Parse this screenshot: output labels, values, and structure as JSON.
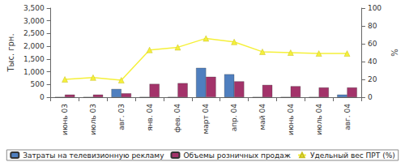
{
  "chart_data": {
    "type": "bar",
    "categories": [
      "июнь 03",
      "июль 03",
      "авг. 03",
      "янв. 04",
      "фев. 04",
      "март 04",
      "апр. 04",
      "май 04",
      "июнь 04",
      "июль 04",
      "авг. 04"
    ],
    "ylabel": "Тыс. грн.",
    "y2label": "%",
    "ylim": [
      0,
      3500
    ],
    "yticks": [
      0,
      500,
      1000,
      1500,
      2000,
      2500,
      3000,
      3500
    ],
    "y2lim": [
      0,
      100
    ],
    "y2ticks": [
      0,
      20,
      40,
      60,
      80,
      100
    ],
    "grid": false,
    "legend": "bottom",
    "series": [
      {
        "name": "Затраты на телевизионную рекламу",
        "type": "bar",
        "color": "#4f7fbf",
        "values": [
          0,
          0,
          320,
          0,
          0,
          1150,
          900,
          0,
          0,
          0,
          100
        ]
      },
      {
        "name": "Объемы розничных продаж",
        "type": "bar",
        "color": "#a3336a",
        "values": [
          100,
          100,
          150,
          520,
          550,
          800,
          620,
          480,
          430,
          380,
          380
        ]
      },
      {
        "name": "Удельный вес ПРТ (%)",
        "type": "line",
        "axis": "y2",
        "color": "#f5f03a",
        "marker": "triangle",
        "values": [
          20,
          22,
          19,
          53,
          56,
          66,
          62,
          51,
          50,
          49,
          49
        ]
      }
    ]
  }
}
